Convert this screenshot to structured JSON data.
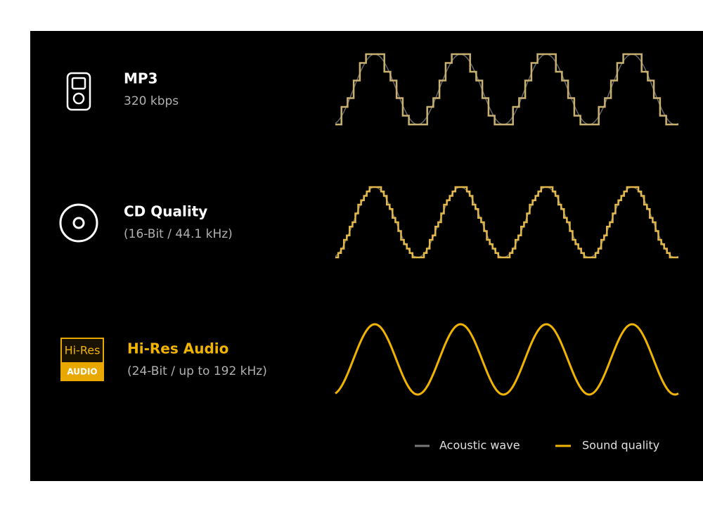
{
  "rows": [
    {
      "title": "MP3",
      "subtitle": "320 kbps"
    },
    {
      "title": "CD Quality",
      "subtitle": "(16-Bit / 44.1 kHz)"
    },
    {
      "title": "Hi-Res Audio",
      "subtitle": "(24-Bit / up to 192 kHz)",
      "badge_top": "Hi-Res",
      "badge_bottom": "AUDIO"
    }
  ],
  "legend": [
    "Acoustic wave",
    "Sound quality"
  ]
}
